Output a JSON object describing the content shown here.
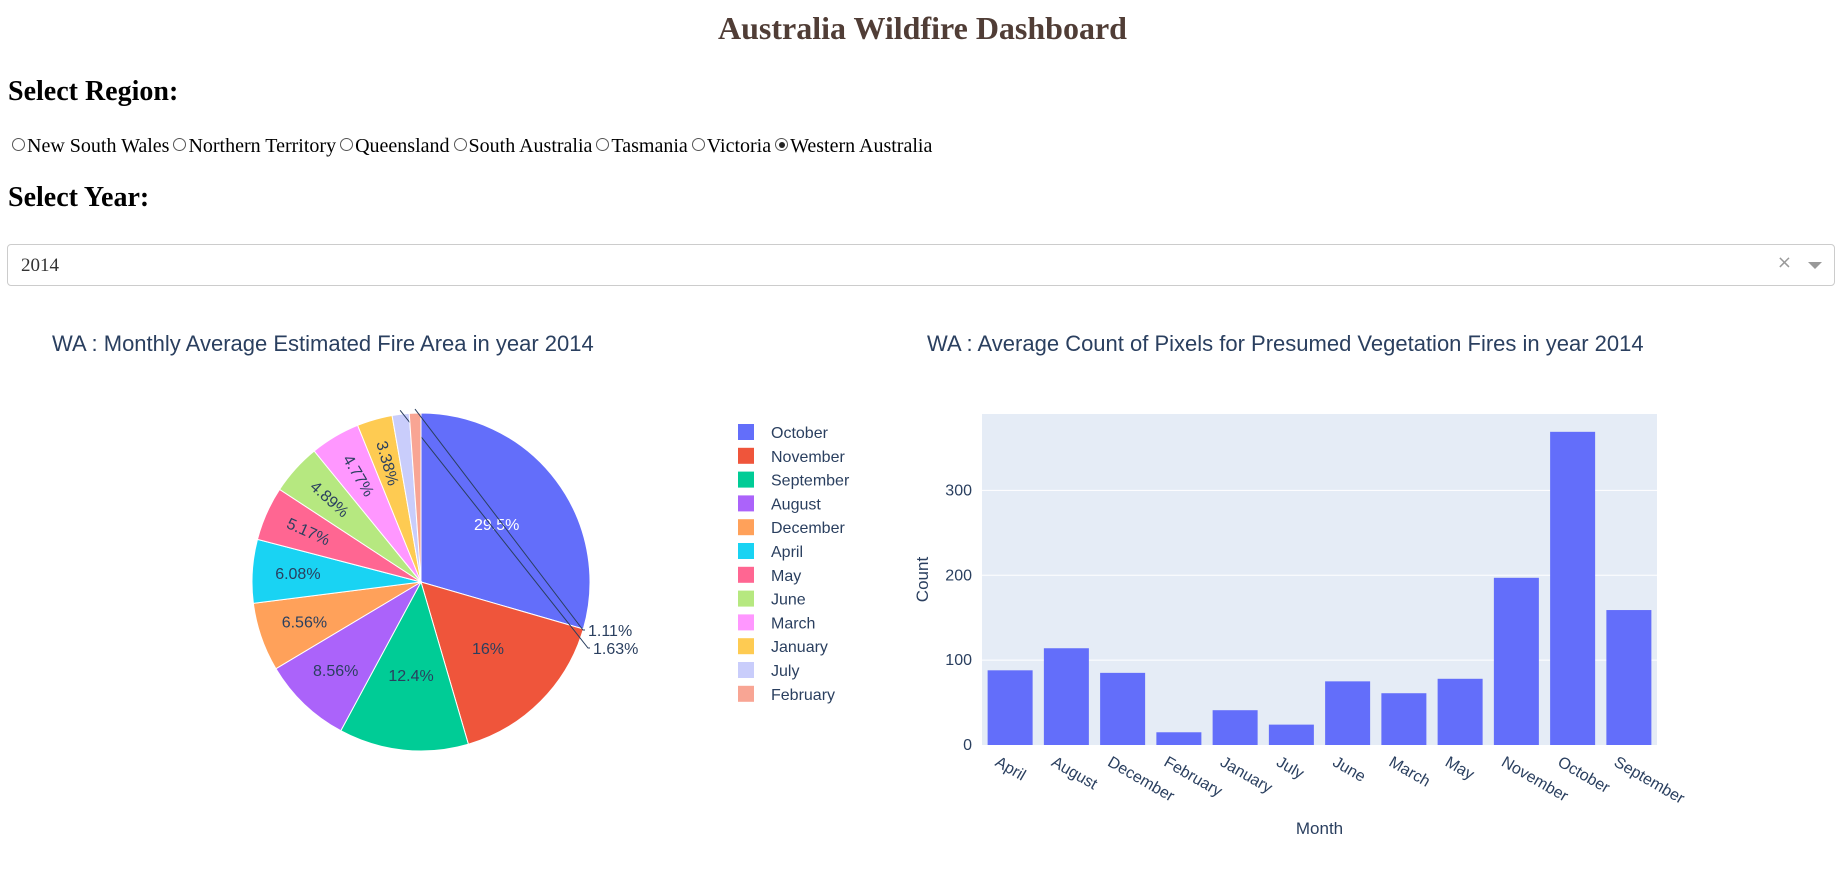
{
  "header": {
    "title": "Australia Wildfire Dashboard"
  },
  "region": {
    "heading": "Select Region:",
    "options": [
      "New South Wales",
      "Northern Territory",
      "Queensland",
      "South Australia",
      "Tasmania",
      "Victoria",
      "Western Australia"
    ],
    "selected": "Western Australia"
  },
  "year": {
    "heading": "Select Year:",
    "value": "2014",
    "clear_icon": "close-icon",
    "caret_icon": "chevron-down-icon"
  },
  "colors": {
    "title": "#503D36",
    "chart_text": "#2a3f5f",
    "plot_bg": "#E5ECF6",
    "bar": "#636EFA"
  },
  "chart_data": [
    {
      "type": "pie",
      "title": "WA : Monthly Average Estimated Fire Area in year 2014",
      "legend_position": "right",
      "slices": [
        {
          "label": "October",
          "percent": 29.5,
          "text": "29.5%",
          "color": "#636EFA"
        },
        {
          "label": "November",
          "percent": 16,
          "text": "16%",
          "color": "#EF553B"
        },
        {
          "label": "September",
          "percent": 12.4,
          "text": "12.4%",
          "color": "#00CC96"
        },
        {
          "label": "August",
          "percent": 8.56,
          "text": "8.56%",
          "color": "#AB63FA"
        },
        {
          "label": "December",
          "percent": 6.56,
          "text": "6.56%",
          "color": "#FFA15A"
        },
        {
          "label": "April",
          "percent": 6.08,
          "text": "6.08%",
          "color": "#19D3F3"
        },
        {
          "label": "May",
          "percent": 5.17,
          "text": "5.17%",
          "color": "#FF6692"
        },
        {
          "label": "June",
          "percent": 4.89,
          "text": "4.89%",
          "color": "#B6E880"
        },
        {
          "label": "March",
          "percent": 4.77,
          "text": "4.77%",
          "color": "#FF97FF"
        },
        {
          "label": "January",
          "percent": 3.38,
          "text": "3.38%",
          "color": "#FECB52"
        },
        {
          "label": "July",
          "percent": 1.63,
          "text": "1.63%",
          "color": "#C9CDFB"
        },
        {
          "label": "February",
          "percent": 1.11,
          "text": "1.11%",
          "color": "#F8A594"
        }
      ]
    },
    {
      "type": "bar",
      "title": "WA : Average Count of Pixels for Presumed Vegetation Fires in year 2014",
      "xlabel": "Month",
      "ylabel": "Count",
      "categories": [
        "April",
        "August",
        "December",
        "February",
        "January",
        "July",
        "June",
        "March",
        "May",
        "November",
        "October",
        "September"
      ],
      "values": [
        88,
        114,
        85,
        15,
        41,
        24,
        75,
        61,
        78,
        197,
        369,
        159
      ],
      "ylim": [
        0,
        390
      ],
      "yticks": [
        0,
        100,
        200,
        300
      ],
      "grid": true
    }
  ]
}
